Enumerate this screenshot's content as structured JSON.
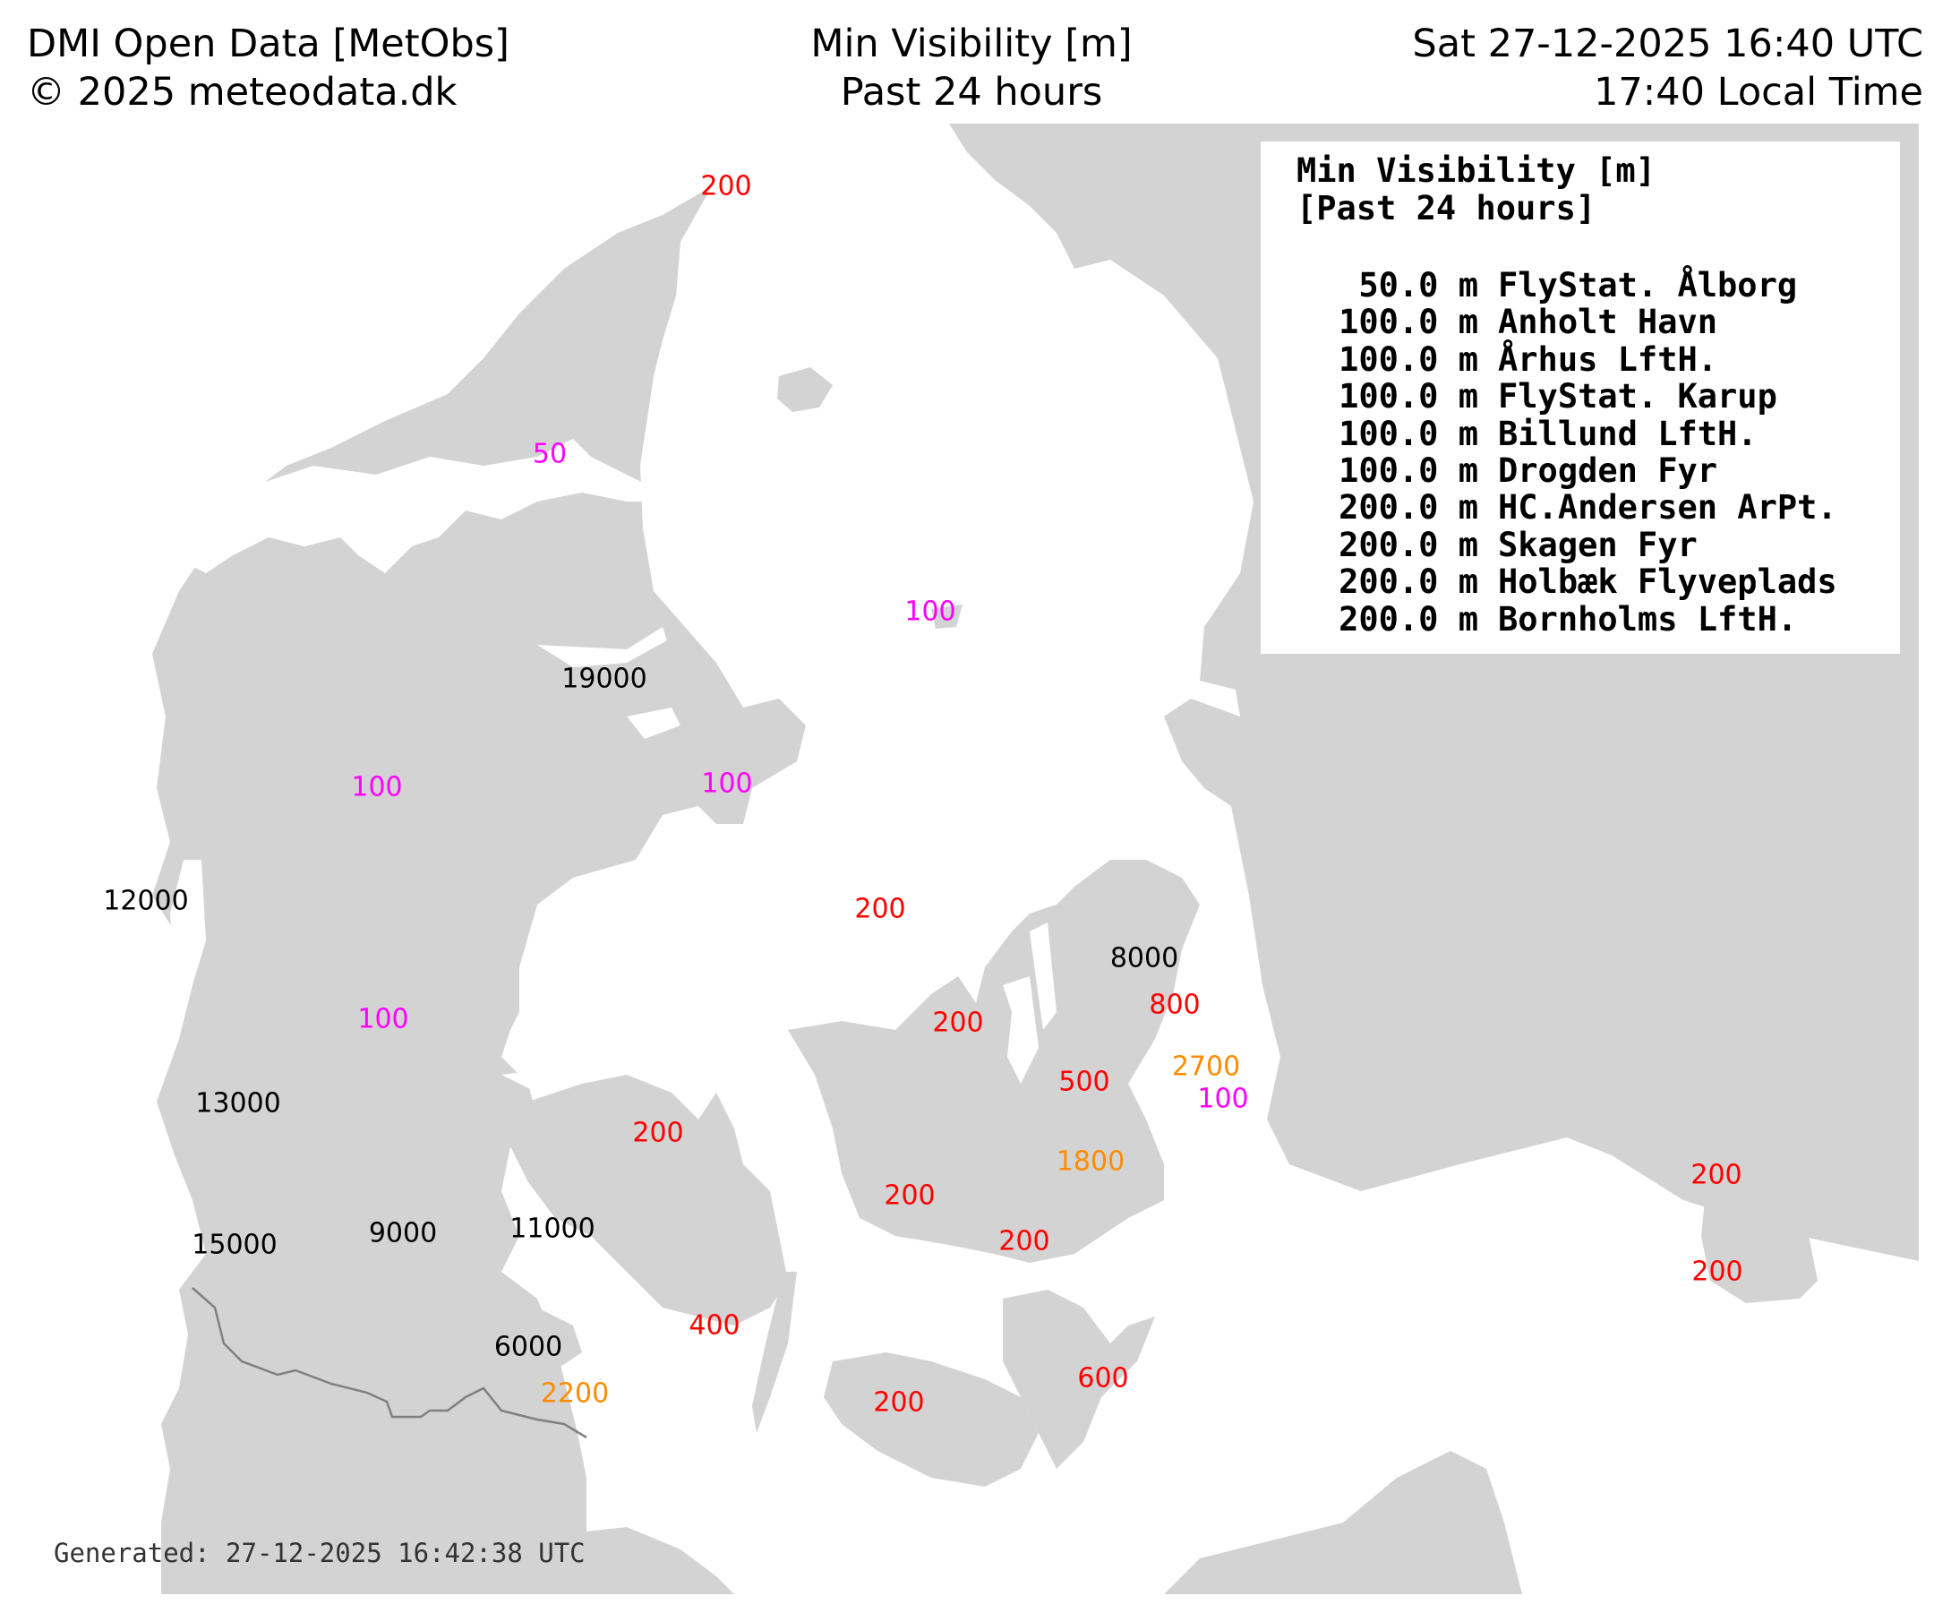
{
  "header": {
    "left_line1": "DMI Open Data [MetObs]",
    "left_line2": "© 2025 meteodata.dk",
    "center_line1": "Min Visibility [m]",
    "center_line2": "Past 24 hours",
    "right_line1": "Sat 27-12-2025 16:40 UTC",
    "right_line2": "17:40 Local Time"
  },
  "legend": {
    "title_line1": "Min Visibility [m]",
    "title_line2": "[Past 24 hours]",
    "entries": [
      {
        "value": "50.0 m",
        "station": "FlyStat. Ålborg"
      },
      {
        "value": "100.0 m",
        "station": "Anholt Havn"
      },
      {
        "value": "100.0 m",
        "station": "Århus LftH."
      },
      {
        "value": "100.0 m",
        "station": "FlyStat. Karup"
      },
      {
        "value": "100.0 m",
        "station": "Billund LftH."
      },
      {
        "value": "100.0 m",
        "station": "Drogden Fyr"
      },
      {
        "value": "200.0 m",
        "station": "HC.Andersen ArPt."
      },
      {
        "value": "200.0 m",
        "station": "Skagen Fyr"
      },
      {
        "value": "200.0 m",
        "station": "Holbæk Flyveplads"
      },
      {
        "value": "200.0 m",
        "station": "Bornholms LftH."
      }
    ]
  },
  "colors": {
    "land": "#d3d3d3",
    "sea": "#ffffff",
    "border": "#808080",
    "very_low": "#ff00ff",
    "low": "#ff0000",
    "moderate": "#ff8c00",
    "good": "#000000"
  },
  "observations": [
    {
      "label": "200",
      "color": "#ff0000"
    },
    {
      "label": "50",
      "color": "#ff00ff"
    },
    {
      "label": "100",
      "color": "#ff00ff"
    },
    {
      "label": "19000",
      "color": "#000000"
    },
    {
      "label": "100",
      "color": "#ff00ff"
    },
    {
      "label": "100",
      "color": "#ff00ff"
    },
    {
      "label": "12000",
      "color": "#000000"
    },
    {
      "label": "200",
      "color": "#ff0000"
    },
    {
      "label": "8000",
      "color": "#000000"
    },
    {
      "label": "800",
      "color": "#ff0000"
    },
    {
      "label": "100",
      "color": "#ff00ff"
    },
    {
      "label": "200",
      "color": "#ff0000"
    },
    {
      "label": "2700",
      "color": "#ff8c00"
    },
    {
      "label": "500",
      "color": "#ff0000"
    },
    {
      "label": "100",
      "color": "#ff00ff"
    },
    {
      "label": "13000",
      "color": "#000000"
    },
    {
      "label": "200",
      "color": "#ff0000"
    },
    {
      "label": "1800",
      "color": "#ff8c00"
    },
    {
      "label": "200",
      "color": "#ff0000"
    },
    {
      "label": "200",
      "color": "#ff0000"
    },
    {
      "label": "15000",
      "color": "#000000"
    },
    {
      "label": "9000",
      "color": "#000000"
    },
    {
      "label": "11000",
      "color": "#000000"
    },
    {
      "label": "200",
      "color": "#ff0000"
    },
    {
      "label": "200",
      "color": "#ff0000"
    },
    {
      "label": "400",
      "color": "#ff0000"
    },
    {
      "label": "6000",
      "color": "#000000"
    },
    {
      "label": "600",
      "color": "#ff0000"
    },
    {
      "label": "2200",
      "color": "#ff8c00"
    },
    {
      "label": "200",
      "color": "#ff0000"
    }
  ],
  "footer": {
    "generated": "Generated: 27-12-2025 16:42:38 UTC"
  }
}
